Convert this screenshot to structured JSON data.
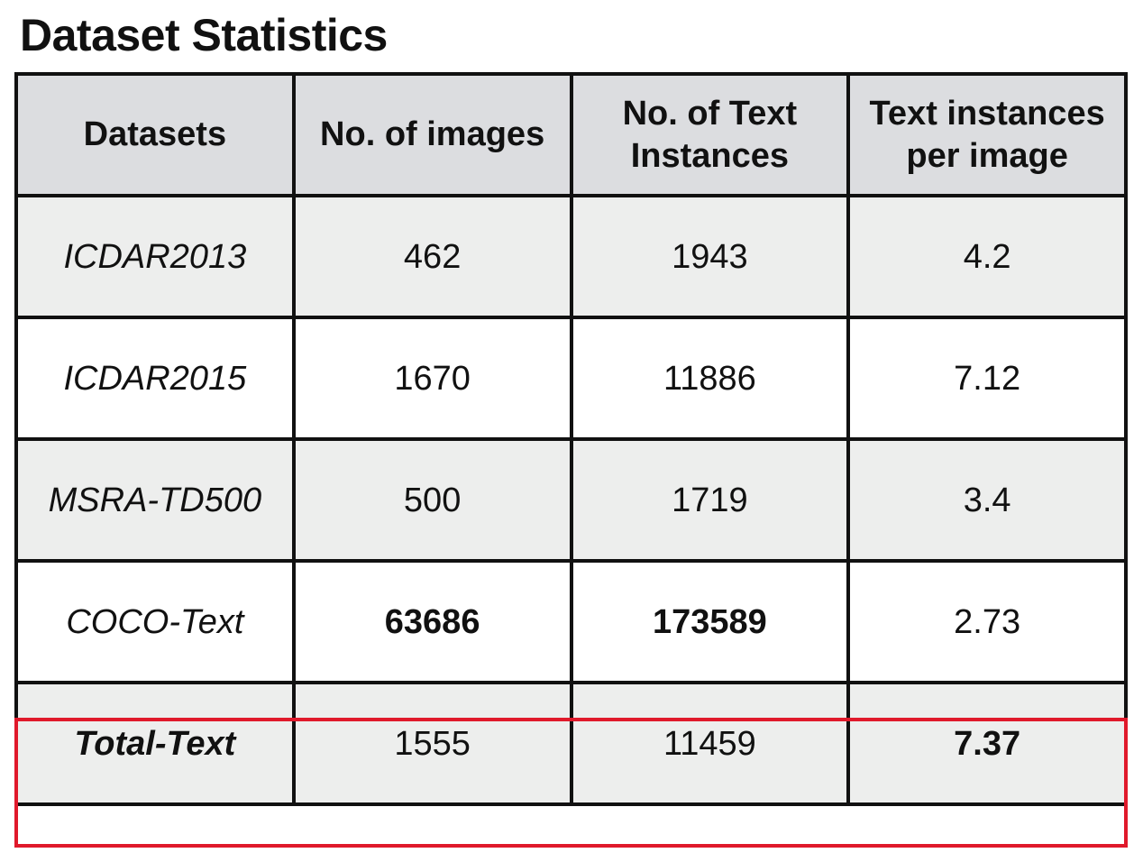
{
  "title": "Dataset Statistics",
  "table": {
    "headers": [
      [
        "Datasets"
      ],
      [
        "No. of images"
      ],
      [
        "No. of Text",
        "Instances"
      ],
      [
        "Text instances",
        "per image"
      ]
    ],
    "rows": [
      {
        "name": "ICDAR2013",
        "images": "462",
        "instances": "1943",
        "per_image": "4.2"
      },
      {
        "name": "ICDAR2015",
        "images": "1670",
        "instances": "11886",
        "per_image": "7.12"
      },
      {
        "name": "MSRA-TD500",
        "images": "500",
        "instances": "1719",
        "per_image": "3.4"
      },
      {
        "name": "COCO-Text",
        "images": "63686",
        "instances": "173589",
        "per_image": "2.73"
      },
      {
        "name": "Total-Text",
        "images": "1555",
        "instances": "11459",
        "per_image": "7.37"
      }
    ]
  },
  "colors": {
    "header_bg": "#dcdde0",
    "row_shade_bg": "#edeeed",
    "border": "#111111",
    "highlight": "#e0192b"
  }
}
